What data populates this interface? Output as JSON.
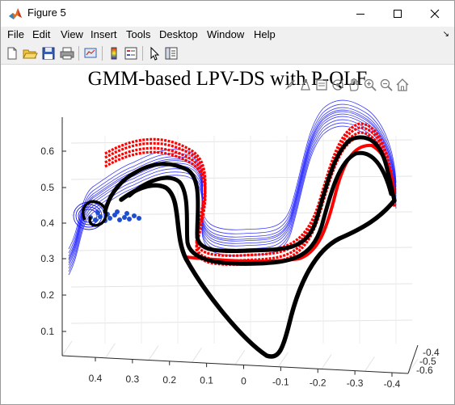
{
  "window": {
    "title": "Figure 5"
  },
  "menu": {
    "file": "File",
    "edit": "Edit",
    "view": "View",
    "insert": "Insert",
    "tools": "Tools",
    "desktop": "Desktop",
    "window": "Window",
    "help": "Help"
  },
  "toolbar": {
    "icons": [
      "new-figure-icon",
      "open-file-icon",
      "save-icon",
      "print-icon",
      "link-plot-icon",
      "insert-colorbar-icon",
      "insert-legend-icon",
      "edit-plot-icon",
      "property-inspector-icon"
    ]
  },
  "axes_toolbar": {
    "icons": [
      "brush-icon",
      "data-tips-icon",
      "export-icon",
      "rotate-3d-icon",
      "pan-icon",
      "zoom-in-icon",
      "zoom-out-icon",
      "home-icon"
    ]
  },
  "plot": {
    "title": "GMM-based LPV-DS with P-QLF"
  },
  "chart_data": {
    "type": "line",
    "title": "GMM-based LPV-DS with P-QLF",
    "z_ticks": [
      "0.1",
      "0.2",
      "0.3",
      "0.4",
      "0.5",
      "0.6"
    ],
    "x_ticks": [
      "0.4",
      "0.3",
      "0.2",
      "0.1",
      "0",
      "-0.1",
      "-0.2",
      "-0.3",
      "-0.4"
    ],
    "y_ticks": [
      "-0.4",
      "-0.5",
      "-0.6"
    ],
    "series": [
      {
        "color": "#1a1aff"
      },
      {
        "color": "#ff0000"
      },
      {
        "color": "#000000"
      }
    ],
    "grid": true,
    "view": "3d"
  }
}
